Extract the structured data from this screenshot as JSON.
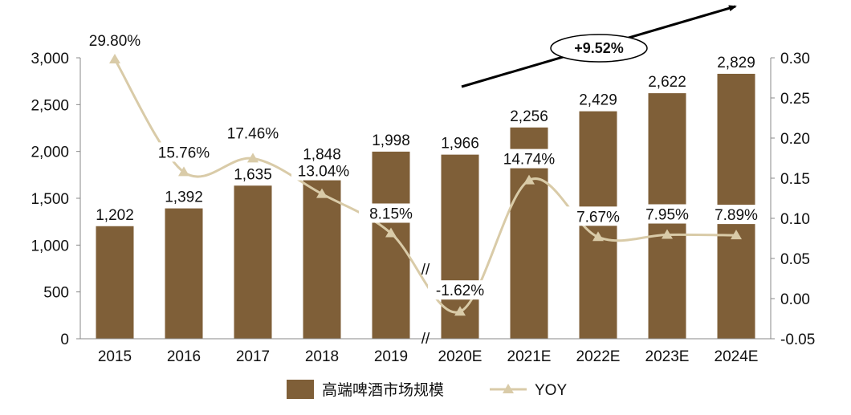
{
  "chart_data": {
    "type": "bar",
    "categories": [
      "2015",
      "2016",
      "2017",
      "2018",
      "2019",
      "2020E",
      "2021E",
      "2022E",
      "2023E",
      "2024E"
    ],
    "series": [
      {
        "name": "高端啤酒市场规模",
        "type": "bar",
        "axis": "left",
        "values": [
          1202,
          1392,
          1635,
          1848,
          1998,
          1966,
          2256,
          2429,
          2622,
          2829
        ],
        "labels": [
          "1,202",
          "1,392",
          "1,635",
          "1,848",
          "1,998",
          "1,966",
          "2,256",
          "2,429",
          "2,622",
          "2,829"
        ],
        "color": "#7f5f38"
      },
      {
        "name": "YOY",
        "type": "line",
        "axis": "right",
        "values": [
          0.298,
          0.1576,
          0.1746,
          0.1304,
          0.0815,
          -0.0162,
          0.1474,
          0.0767,
          0.0795,
          0.0789
        ],
        "labels": [
          "29.80%",
          "15.76%",
          "17.46%",
          "13.04%",
          "8.15%",
          "-1.62%",
          "14.74%",
          "7.67%",
          "7.95%",
          "7.89%"
        ],
        "color": "#d9cba8",
        "marker": "triangle"
      }
    ],
    "y_left": {
      "ylim": [
        0,
        3000
      ],
      "ticks": [
        "0",
        "500",
        "1,000",
        "1,500",
        "2,000",
        "2,500",
        "3,000"
      ]
    },
    "y_right": {
      "ylim": [
        -0.05,
        0.3
      ],
      "ticks": [
        "-0.05",
        "0.00",
        "0.05",
        "0.10",
        "0.15",
        "0.20",
        "0.25",
        "0.30"
      ]
    },
    "annotation": {
      "text": "+9.52%"
    },
    "axis_break": {
      "symbol": "//",
      "after_category": "2019"
    },
    "grid": false,
    "legend": "bottom"
  }
}
